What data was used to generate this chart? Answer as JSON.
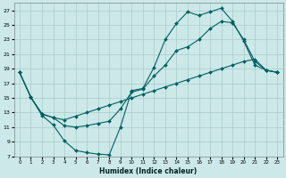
{
  "xlabel": "Humidex (Indice chaleur)",
  "bg_color": "#cce8e8",
  "line_color": "#006060",
  "xlim": [
    -0.5,
    23.5
  ],
  "ylim": [
    7,
    28
  ],
  "xticks": [
    0,
    1,
    2,
    3,
    4,
    5,
    6,
    7,
    8,
    9,
    10,
    11,
    12,
    13,
    14,
    15,
    16,
    17,
    18,
    19,
    20,
    21,
    22,
    23
  ],
  "yticks": [
    7,
    9,
    11,
    13,
    15,
    17,
    19,
    21,
    23,
    25,
    27
  ],
  "grid_color": "#aacccc",
  "series": [
    {
      "x": [
        0,
        1,
        2,
        3,
        4,
        5,
        6,
        7,
        8,
        9,
        10,
        11,
        12,
        13,
        14,
        15,
        16,
        17,
        18,
        19,
        20,
        21,
        22,
        23
      ],
      "y": [
        18.5,
        15.1,
        12.6,
        11.3,
        9.1,
        7.8,
        7.5,
        7.3,
        7.2,
        11.0,
        16.0,
        16.3,
        19.2,
        23.0,
        25.2,
        26.8,
        26.3,
        26.8,
        27.3,
        25.5,
        22.8,
        19.5,
        18.8,
        18.5
      ]
    },
    {
      "x": [
        0,
        1,
        2,
        3,
        4,
        5,
        6,
        7,
        8,
        9,
        10,
        11,
        12,
        13,
        14,
        15,
        16,
        17,
        18,
        19,
        20,
        21,
        22,
        23
      ],
      "y": [
        18.5,
        15.1,
        12.8,
        12.3,
        11.2,
        11.0,
        11.2,
        11.5,
        11.8,
        13.5,
        15.8,
        16.2,
        18.0,
        19.5,
        21.5,
        22.0,
        23.0,
        24.5,
        25.5,
        25.3,
        23.0,
        20.0,
        18.8,
        18.5
      ]
    },
    {
      "x": [
        0,
        1,
        2,
        3,
        4,
        5,
        6,
        7,
        8,
        9,
        10,
        11,
        12,
        13,
        14,
        15,
        16,
        17,
        18,
        19,
        20,
        21,
        22,
        23
      ],
      "y": [
        18.5,
        15.1,
        12.8,
        12.3,
        12.0,
        12.5,
        13.0,
        13.5,
        14.0,
        14.5,
        15.0,
        15.5,
        16.0,
        16.5,
        17.0,
        17.5,
        18.0,
        18.5,
        19.0,
        19.5,
        20.0,
        20.3,
        18.8,
        18.5
      ]
    }
  ]
}
